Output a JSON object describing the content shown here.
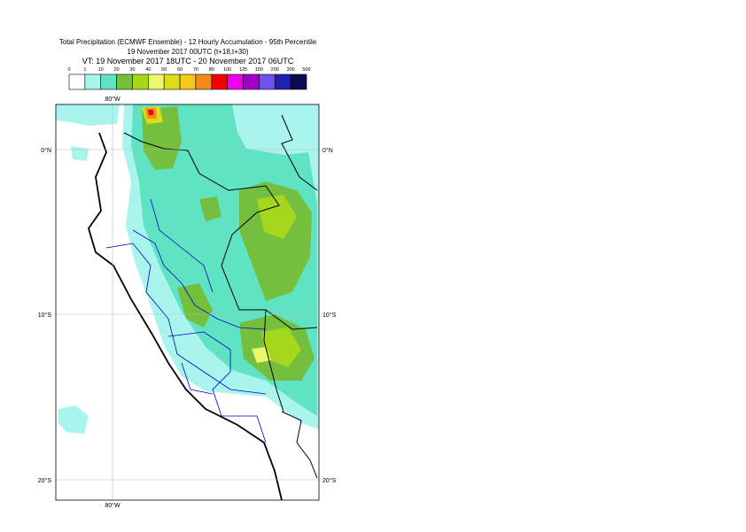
{
  "title": [
    "Total Precipitation (ECMWF Ensemble) - 12 Hourly Accumulation - 95th Percentile",
    "19 November 2017 00UTC (t+18,t+30)",
    "VT: 19 November 2017 18UTC - 20 November 2017 06UTC"
  ],
  "legend": {
    "labels": [
      0,
      1,
      10,
      20,
      30,
      40,
      50,
      60,
      70,
      80,
      100,
      125,
      150,
      200,
      300,
      500
    ],
    "colors": [
      "#ffffff",
      "#a9f5ee",
      "#5fe3c2",
      "#74bf3e",
      "#a5d81c",
      "#eaf86a",
      "#dcdc1a",
      "#f5c81a",
      "#f58a1a",
      "#f50000",
      "#ee00ee",
      "#a000c8",
      "#7050f0",
      "#2020b0",
      "#0a0a50"
    ]
  },
  "map": {
    "lon_labels": [
      "80°W"
    ],
    "lat_labels": [
      "0°N",
      "10°S",
      "20°S"
    ]
  }
}
